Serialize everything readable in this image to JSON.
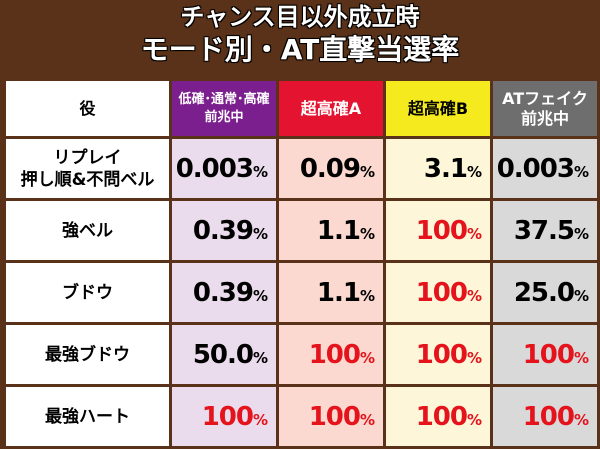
{
  "title_line1": "チャンス目以外成立時",
  "title_line2": "モード別・AT直撃当選率",
  "headers": {
    "role": "役",
    "low_line1": "低確･通常･高確",
    "low_line2": "前兆中",
    "super_a": "超高確A",
    "super_b": "超高確B",
    "at_fake_line1": "ATフェイク",
    "at_fake_line2": "前兆中"
  },
  "rows": [
    {
      "label_line1": "リプレイ",
      "label_line2": "押し順&不問ベル",
      "values": [
        "0.003",
        "0.09",
        "3.1",
        "0.003"
      ]
    },
    {
      "label_line1": "強ベル",
      "label_line2": "",
      "values": [
        "0.39",
        "1.1",
        "100",
        "37.5"
      ]
    },
    {
      "label_line1": "ブドウ",
      "label_line2": "",
      "values": [
        "0.39",
        "1.1",
        "100",
        "25.0"
      ]
    },
    {
      "label_line1": "最強ブドウ",
      "label_line2": "",
      "values": [
        "50.0",
        "100",
        "100",
        "100"
      ]
    },
    {
      "label_line1": "最強ハート",
      "label_line2": "",
      "values": [
        "100",
        "100",
        "100",
        "100"
      ]
    }
  ],
  "unit": "%",
  "colors": {
    "background": "#5a3219",
    "low_header": "#7c1f8e",
    "super_a_header": "#e4132f",
    "super_b_header": "#f5ea1d",
    "at_fake_header": "#6e6e6e",
    "highlight_value": "#e4131c"
  }
}
